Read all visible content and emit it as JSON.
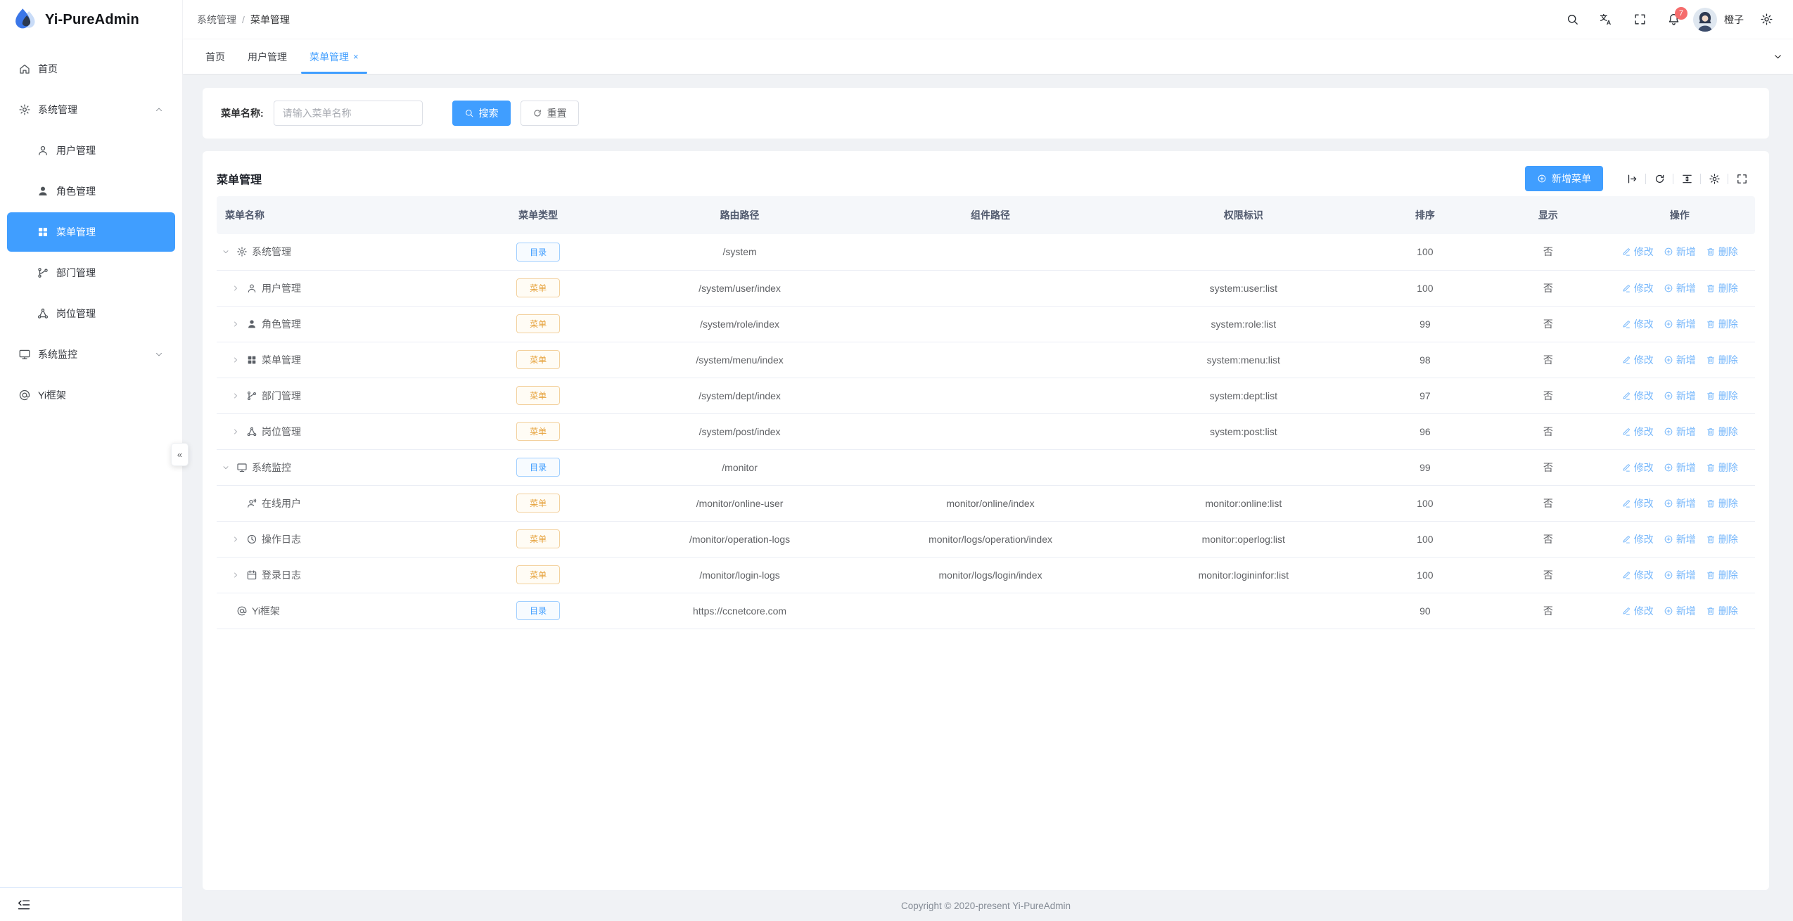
{
  "app": {
    "copyright": "Copyright © 2020-present Yi-PureAdmin"
  },
  "colors": {
    "primary": "#409eff",
    "warning": "#e6a23c",
    "danger": "#f56c6c",
    "action_link": "#74b6fb"
  },
  "sidebar": {
    "logo_title": "Yi-PureAdmin",
    "items": [
      {
        "key": "home",
        "label": "首页",
        "icon": "home"
      },
      {
        "key": "system",
        "label": "系统管理",
        "icon": "gear",
        "expanded": true,
        "children": [
          {
            "key": "user",
            "label": "用户管理",
            "icon": "user"
          },
          {
            "key": "role",
            "label": "角色管理",
            "icon": "user-filled"
          },
          {
            "key": "menu",
            "label": "菜单管理",
            "icon": "grid",
            "active": true
          },
          {
            "key": "dept",
            "label": "部门管理",
            "icon": "dept"
          },
          {
            "key": "post",
            "label": "岗位管理",
            "icon": "post"
          }
        ]
      },
      {
        "key": "monitor",
        "label": "系统监控",
        "icon": "monitor",
        "expanded": false,
        "children": []
      },
      {
        "key": "yi-frame",
        "label": "Yi框架",
        "icon": "at"
      }
    ]
  },
  "header": {
    "breadcrumb": {
      "first": "系统管理",
      "separator": "/",
      "last": "菜单管理"
    },
    "notification_count": "7",
    "user_name": "橙子"
  },
  "tabs": [
    {
      "label": "首页",
      "active": false,
      "closable": false
    },
    {
      "label": "用户管理",
      "active": false,
      "closable": false
    },
    {
      "label": "菜单管理",
      "active": true,
      "closable": true
    }
  ],
  "search_panel": {
    "label": "菜单名称:",
    "placeholder": "请输入菜单名称",
    "value": "",
    "search_label": "搜索",
    "reset_label": "重置"
  },
  "card": {
    "title": "菜单管理",
    "add_button_label": "新增菜单"
  },
  "table": {
    "headers": [
      "菜单名称",
      "菜单类型",
      "路由路径",
      "组件路径",
      "权限标识",
      "排序",
      "显示",
      "操作"
    ],
    "badge_labels": {
      "dir": "目录",
      "menu": "菜单"
    },
    "action_labels": {
      "edit": "修改",
      "add": "新增",
      "delete": "删除"
    },
    "rows": [
      {
        "name": "系统管理",
        "icon": "gear",
        "expand": "down",
        "indent": 0,
        "type": "dir",
        "route": "/system",
        "component": "",
        "perm": "",
        "order": "100",
        "show": "否"
      },
      {
        "name": "用户管理",
        "icon": "user",
        "expand": "right",
        "indent": 1,
        "type": "menu",
        "route": "/system/user/index",
        "component": "",
        "perm": "system:user:list",
        "order": "100",
        "show": "否"
      },
      {
        "name": "角色管理",
        "icon": "user-filled",
        "expand": "right",
        "indent": 1,
        "type": "menu",
        "route": "/system/role/index",
        "component": "",
        "perm": "system:role:list",
        "order": "99",
        "show": "否"
      },
      {
        "name": "菜单管理",
        "icon": "grid",
        "expand": "right",
        "indent": 1,
        "type": "menu",
        "route": "/system/menu/index",
        "component": "",
        "perm": "system:menu:list",
        "order": "98",
        "show": "否"
      },
      {
        "name": "部门管理",
        "icon": "dept",
        "expand": "right",
        "indent": 1,
        "type": "menu",
        "route": "/system/dept/index",
        "component": "",
        "perm": "system:dept:list",
        "order": "97",
        "show": "否"
      },
      {
        "name": "岗位管理",
        "icon": "post",
        "expand": "right",
        "indent": 1,
        "type": "menu",
        "route": "/system/post/index",
        "component": "",
        "perm": "system:post:list",
        "order": "96",
        "show": "否"
      },
      {
        "name": "系统监控",
        "icon": "monitor",
        "expand": "down",
        "indent": 0,
        "type": "dir",
        "route": "/monitor",
        "component": "",
        "perm": "",
        "order": "99",
        "show": "否"
      },
      {
        "name": "在线用户",
        "icon": "online-user",
        "expand": "none",
        "indent": 1,
        "type": "menu",
        "route": "/monitor/online-user",
        "component": "monitor/online/index",
        "perm": "monitor:online:list",
        "order": "100",
        "show": "否"
      },
      {
        "name": "操作日志",
        "icon": "clock",
        "expand": "right",
        "indent": 1,
        "type": "menu",
        "route": "/monitor/operation-logs",
        "component": "monitor/logs/operation/index",
        "perm": "monitor:operlog:list",
        "order": "100",
        "show": "否"
      },
      {
        "name": "登录日志",
        "icon": "calendar",
        "expand": "right",
        "indent": 1,
        "type": "menu",
        "route": "/monitor/login-logs",
        "component": "monitor/logs/login/index",
        "perm": "monitor:logininfor:list",
        "order": "100",
        "show": "否"
      },
      {
        "name": "Yi框架",
        "icon": "at",
        "expand": "none",
        "indent": 0,
        "type": "dir",
        "route": "https://ccnetcore.com",
        "component": "",
        "perm": "",
        "order": "90",
        "show": "否"
      }
    ]
  }
}
